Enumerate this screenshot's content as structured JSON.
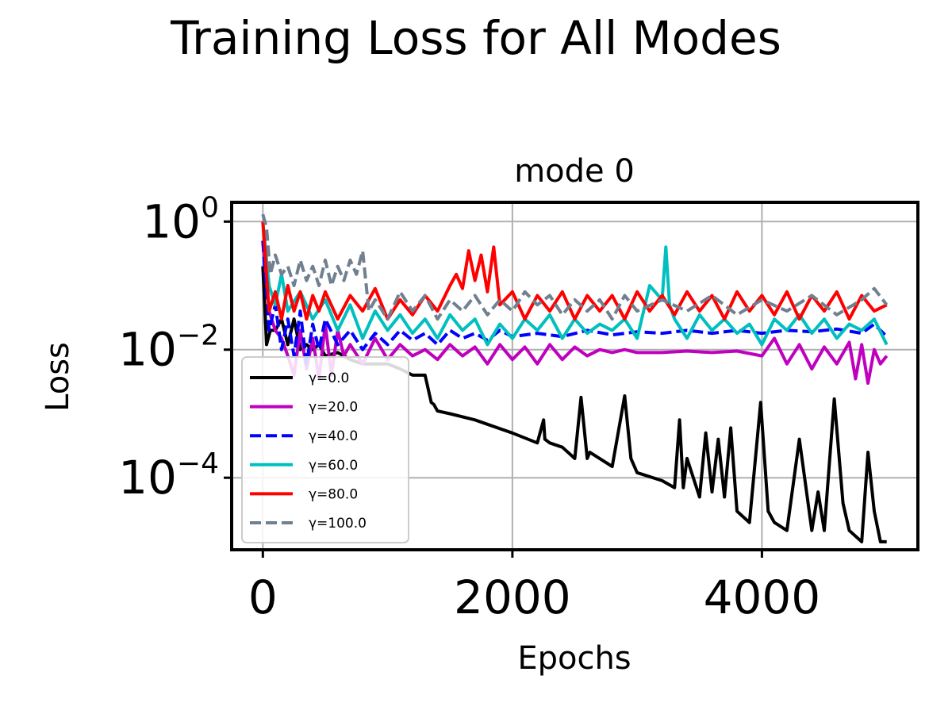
{
  "chart_data": {
    "type": "line",
    "title": "Training Loss for All Modes",
    "subplot_title": "mode 0",
    "xlabel": "Epochs",
    "ylabel": "Loss",
    "y_scale": "log",
    "xlim": [
      -250,
      5250
    ],
    "ylim": [
      7.5e-06,
      2.0
    ],
    "x_ticks": [
      {
        "value": 0,
        "label": "0"
      },
      {
        "value": 2000,
        "label": "2000"
      },
      {
        "value": 4000,
        "label": "4000"
      }
    ],
    "y_ticks": [
      {
        "value": 1,
        "base": "10",
        "exp": "0"
      },
      {
        "value": 0.01,
        "base": "10",
        "exp": "−2"
      },
      {
        "value": 0.0001,
        "base": "10",
        "exp": "−4"
      }
    ],
    "grid": true,
    "legend_position": "lower-left",
    "series": [
      {
        "name": "γ=0.0",
        "color": "#000000",
        "dash": "solid",
        "x": [
          0,
          30,
          60,
          100,
          150,
          200,
          250,
          300,
          350,
          400,
          450,
          500,
          600,
          700,
          800,
          900,
          1000,
          1100,
          1200,
          1300,
          1350,
          1370,
          1400,
          1500,
          1700,
          2000,
          2200,
          2250,
          2260,
          2300,
          2400,
          2500,
          2550,
          2600,
          2620,
          2800,
          2900,
          2950,
          3000,
          3200,
          3300,
          3340,
          3370,
          3400,
          3500,
          3550,
          3600,
          3650,
          3700,
          3750,
          3800,
          3900,
          3990,
          4050,
          4100,
          4200,
          4300,
          4400,
          4450,
          4500,
          4580,
          4650,
          4700,
          4800,
          4850,
          4900,
          4950,
          5000
        ],
        "y": [
          0.2,
          0.012,
          0.02,
          0.02,
          0.03,
          0.012,
          0.03,
          0.01,
          0.012,
          0.01,
          0.012,
          0.008,
          0.009,
          0.007,
          0.006,
          0.006,
          0.006,
          0.005,
          0.004,
          0.004,
          0.0015,
          0.0014,
          0.0011,
          0.001,
          0.0008,
          0.0005,
          0.00035,
          0.0008,
          0.0004,
          0.00035,
          0.0003,
          0.0002,
          0.0018,
          0.0002,
          0.00025,
          0.00015,
          0.0019,
          0.0002,
          0.00012,
          9e-05,
          7e-05,
          0.0008,
          7e-05,
          0.0002,
          5e-05,
          0.0005,
          6e-05,
          0.0004,
          5e-05,
          0.0006,
          3e-05,
          2e-05,
          0.0015,
          3e-05,
          2e-05,
          1.5e-05,
          0.0004,
          1.5e-05,
          6e-05,
          1.5e-05,
          0.0017,
          4e-05,
          1.5e-05,
          1e-05,
          0.00025,
          3e-05,
          1e-05,
          1e-05
        ]
      },
      {
        "name": "γ=20.0",
        "color": "#bf00bf",
        "dash": "solid",
        "x": [
          0,
          50,
          100,
          150,
          200,
          250,
          300,
          350,
          400,
          450,
          500,
          550,
          600,
          650,
          700,
          800,
          900,
          1000,
          1100,
          1200,
          1300,
          1400,
          1500,
          1600,
          1700,
          1800,
          1900,
          2000,
          2100,
          2200,
          2300,
          2400,
          2500,
          2600,
          2700,
          2800,
          2900,
          3000,
          3200,
          3400,
          3600,
          3800,
          4000,
          4100,
          4200,
          4300,
          4400,
          4500,
          4600,
          4700,
          4750,
          4800,
          4850,
          4900,
          4950,
          5000
        ],
        "y": [
          0.5,
          0.04,
          0.02,
          0.015,
          0.008,
          0.004,
          0.02,
          0.005,
          0.015,
          0.0035,
          0.025,
          0.004,
          0.02,
          0.008,
          0.012,
          0.006,
          0.015,
          0.007,
          0.012,
          0.008,
          0.01,
          0.007,
          0.012,
          0.008,
          0.011,
          0.006,
          0.012,
          0.007,
          0.011,
          0.006,
          0.012,
          0.007,
          0.011,
          0.008,
          0.01,
          0.009,
          0.01,
          0.009,
          0.009,
          0.0095,
          0.009,
          0.0095,
          0.008,
          0.015,
          0.006,
          0.012,
          0.005,
          0.011,
          0.006,
          0.013,
          0.0035,
          0.012,
          0.003,
          0.01,
          0.006,
          0.008
        ]
      },
      {
        "name": "γ=40.0",
        "color": "#0000ff",
        "dash": "dashed",
        "x": [
          0,
          50,
          100,
          150,
          200,
          250,
          300,
          350,
          400,
          450,
          500,
          600,
          700,
          800,
          900,
          1000,
          1100,
          1200,
          1300,
          1400,
          1500,
          1600,
          1700,
          1800,
          1900,
          2000,
          2200,
          2400,
          2600,
          2800,
          3000,
          3200,
          3400,
          3600,
          3800,
          4000,
          4200,
          4400,
          4600,
          4800,
          4900,
          5000
        ],
        "y": [
          0.5,
          0.02,
          0.05,
          0.01,
          0.03,
          0.008,
          0.04,
          0.006,
          0.025,
          0.01,
          0.03,
          0.012,
          0.02,
          0.01,
          0.018,
          0.012,
          0.02,
          0.014,
          0.018,
          0.012,
          0.02,
          0.015,
          0.018,
          0.014,
          0.02,
          0.016,
          0.018,
          0.016,
          0.02,
          0.017,
          0.019,
          0.018,
          0.02,
          0.018,
          0.02,
          0.018,
          0.02,
          0.019,
          0.021,
          0.018,
          0.025,
          0.016
        ]
      },
      {
        "name": "γ=60.0",
        "color": "#00bfbf",
        "dash": "solid",
        "x": [
          0,
          50,
          100,
          150,
          200,
          300,
          400,
          500,
          600,
          700,
          800,
          900,
          1000,
          1100,
          1200,
          1300,
          1400,
          1500,
          1600,
          1700,
          1800,
          1900,
          2000,
          2100,
          2200,
          2300,
          2400,
          2500,
          2600,
          2700,
          2800,
          2900,
          3000,
          3100,
          3200,
          3230,
          3260,
          3300,
          3400,
          3500,
          3600,
          3700,
          3800,
          3900,
          4000,
          4100,
          4200,
          4300,
          4400,
          4500,
          4600,
          4700,
          4800,
          4900,
          5000
        ],
        "y": [
          1.0,
          0.1,
          0.05,
          0.15,
          0.04,
          0.08,
          0.03,
          0.06,
          0.02,
          0.05,
          0.015,
          0.04,
          0.02,
          0.035,
          0.018,
          0.03,
          0.015,
          0.035,
          0.02,
          0.03,
          0.012,
          0.025,
          0.015,
          0.03,
          0.02,
          0.035,
          0.015,
          0.03,
          0.018,
          0.025,
          0.02,
          0.03,
          0.015,
          0.1,
          0.06,
          0.4,
          0.05,
          0.03,
          0.015,
          0.035,
          0.02,
          0.03,
          0.018,
          0.025,
          0.012,
          0.03,
          0.02,
          0.035,
          0.018,
          0.03,
          0.015,
          0.025,
          0.02,
          0.03,
          0.012
        ]
      },
      {
        "name": "γ=80.0",
        "color": "#ff0000",
        "dash": "solid",
        "x": [
          0,
          50,
          100,
          150,
          200,
          250,
          300,
          350,
          400,
          450,
          500,
          600,
          700,
          800,
          900,
          1000,
          1100,
          1200,
          1300,
          1400,
          1500,
          1550,
          1600,
          1650,
          1700,
          1750,
          1800,
          1850,
          1900,
          2000,
          2100,
          2200,
          2300,
          2400,
          2500,
          2600,
          2700,
          2800,
          2900,
          3000,
          3100,
          3200,
          3300,
          3400,
          3500,
          3600,
          3700,
          3800,
          3900,
          4000,
          4100,
          4200,
          4300,
          4400,
          4500,
          4600,
          4700,
          4800,
          4900,
          5000
        ],
        "y": [
          1.0,
          0.04,
          0.08,
          0.03,
          0.1,
          0.04,
          0.08,
          0.03,
          0.07,
          0.04,
          0.08,
          0.03,
          0.07,
          0.04,
          0.09,
          0.03,
          0.06,
          0.035,
          0.07,
          0.04,
          0.1,
          0.15,
          0.09,
          0.35,
          0.12,
          0.3,
          0.08,
          0.4,
          0.05,
          0.08,
          0.03,
          0.07,
          0.04,
          0.08,
          0.03,
          0.07,
          0.04,
          0.07,
          0.03,
          0.08,
          0.04,
          0.07,
          0.035,
          0.08,
          0.04,
          0.07,
          0.03,
          0.08,
          0.04,
          0.07,
          0.035,
          0.08,
          0.03,
          0.07,
          0.04,
          0.08,
          0.03,
          0.07,
          0.04,
          0.05
        ]
      },
      {
        "name": "γ=100.0",
        "color": "#708090",
        "dash": "dashed",
        "x": [
          0,
          30,
          60,
          100,
          150,
          200,
          250,
          300,
          350,
          400,
          450,
          500,
          550,
          600,
          650,
          700,
          750,
          800,
          850,
          900,
          1000,
          1100,
          1200,
          1300,
          1400,
          1500,
          1600,
          1700,
          1800,
          1900,
          2000,
          2100,
          2200,
          2300,
          2400,
          2500,
          2600,
          2700,
          2800,
          2900,
          3000,
          3200,
          3400,
          3600,
          3800,
          4000,
          4200,
          4400,
          4600,
          4800,
          4900,
          5000
        ],
        "y": [
          1.3,
          0.8,
          0.15,
          0.3,
          0.15,
          0.2,
          0.1,
          0.25,
          0.12,
          0.2,
          0.1,
          0.25,
          0.1,
          0.2,
          0.12,
          0.25,
          0.15,
          0.35,
          0.04,
          0.06,
          0.03,
          0.08,
          0.04,
          0.07,
          0.03,
          0.06,
          0.04,
          0.07,
          0.035,
          0.06,
          0.04,
          0.08,
          0.05,
          0.07,
          0.035,
          0.06,
          0.04,
          0.06,
          0.03,
          0.07,
          0.04,
          0.06,
          0.04,
          0.07,
          0.035,
          0.06,
          0.04,
          0.07,
          0.035,
          0.06,
          0.09,
          0.05
        ]
      }
    ]
  }
}
